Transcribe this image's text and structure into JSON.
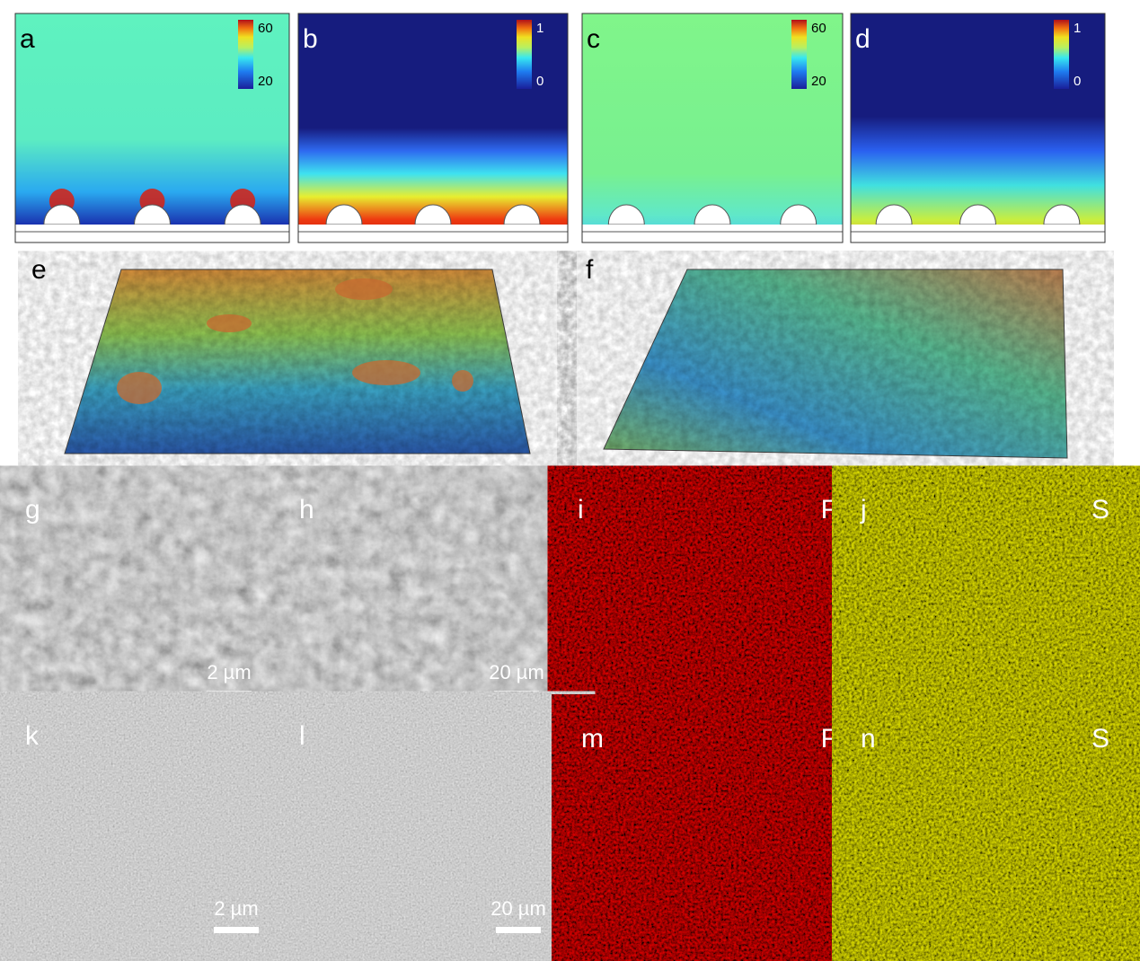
{
  "simulations": [
    {
      "label": "a",
      "colorbar": {
        "max": 60,
        "min": 20
      }
    },
    {
      "label": "b",
      "colorbar": {
        "max": 1,
        "min": 0
      }
    },
    {
      "label": "c",
      "colorbar": {
        "max": 60,
        "min": 20
      }
    },
    {
      "label": "d",
      "colorbar": {
        "max": 1,
        "min": 0
      }
    }
  ],
  "surfaces": [
    {
      "label": "e"
    },
    {
      "label": "f"
    }
  ],
  "micrographs": [
    {
      "label": "g",
      "scale_bar": "2 µm"
    },
    {
      "label": "h",
      "scale_bar": "20 µm"
    },
    {
      "label": "i",
      "element": "F"
    },
    {
      "label": "j",
      "element": "S"
    },
    {
      "label": "k",
      "scale_bar": "2 µm"
    },
    {
      "label": "l",
      "scale_bar": "20 µm"
    },
    {
      "label": "m",
      "element": "F"
    },
    {
      "label": "n",
      "element": "S"
    }
  ]
}
